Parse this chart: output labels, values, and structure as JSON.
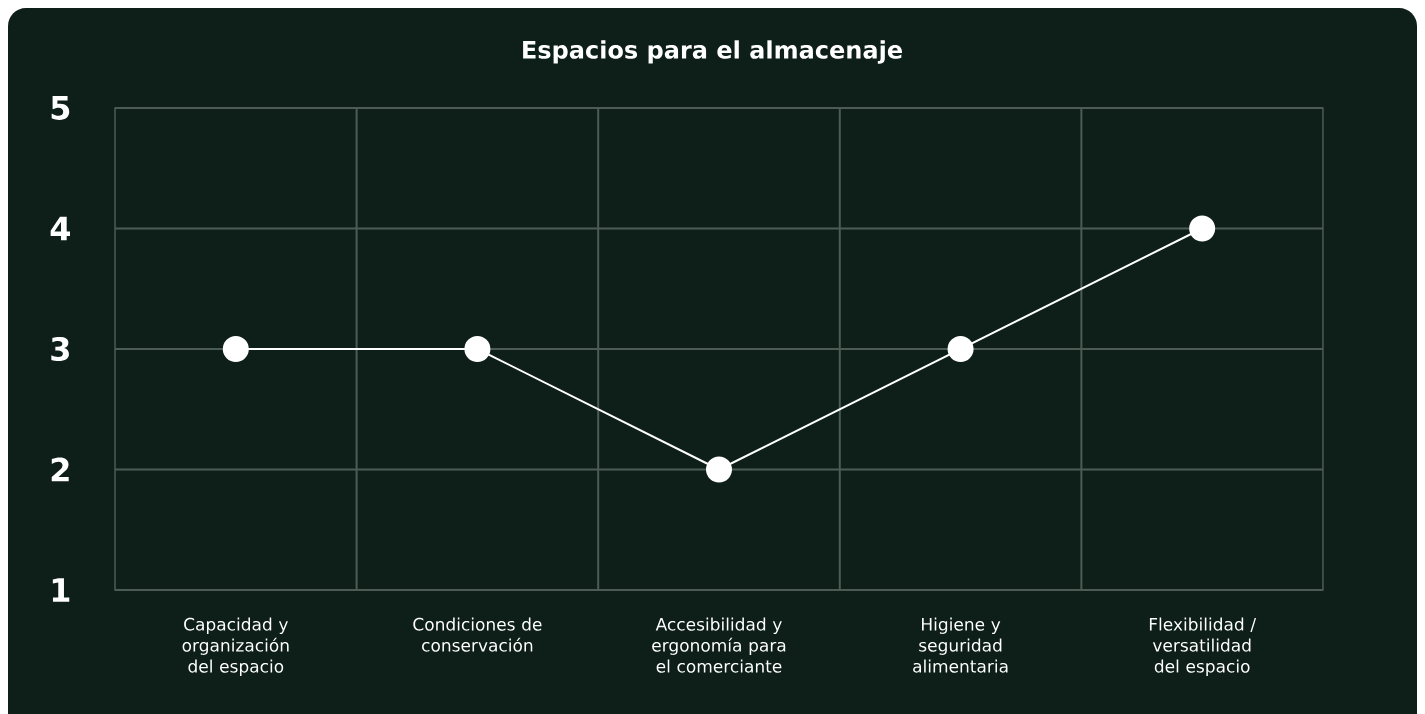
{
  "chart_data": {
    "type": "line",
    "title": "Espacios para el almacenaje",
    "categories": [
      "Capacidad y organización del espacio",
      "Condiciones de conservación",
      "Accesibilidad y ergonomía para el comerciante",
      "Higiene y seguridad alimentaria",
      "Flexibilidad / versatilidad del espacio"
    ],
    "values": [
      3,
      3,
      2,
      3,
      4
    ],
    "color": "#ffffff",
    "ylim": [
      1,
      5
    ],
    "yticks": [
      1,
      2,
      3,
      4,
      5
    ],
    "grid": true,
    "marker": "circle",
    "line_style": "solid"
  }
}
